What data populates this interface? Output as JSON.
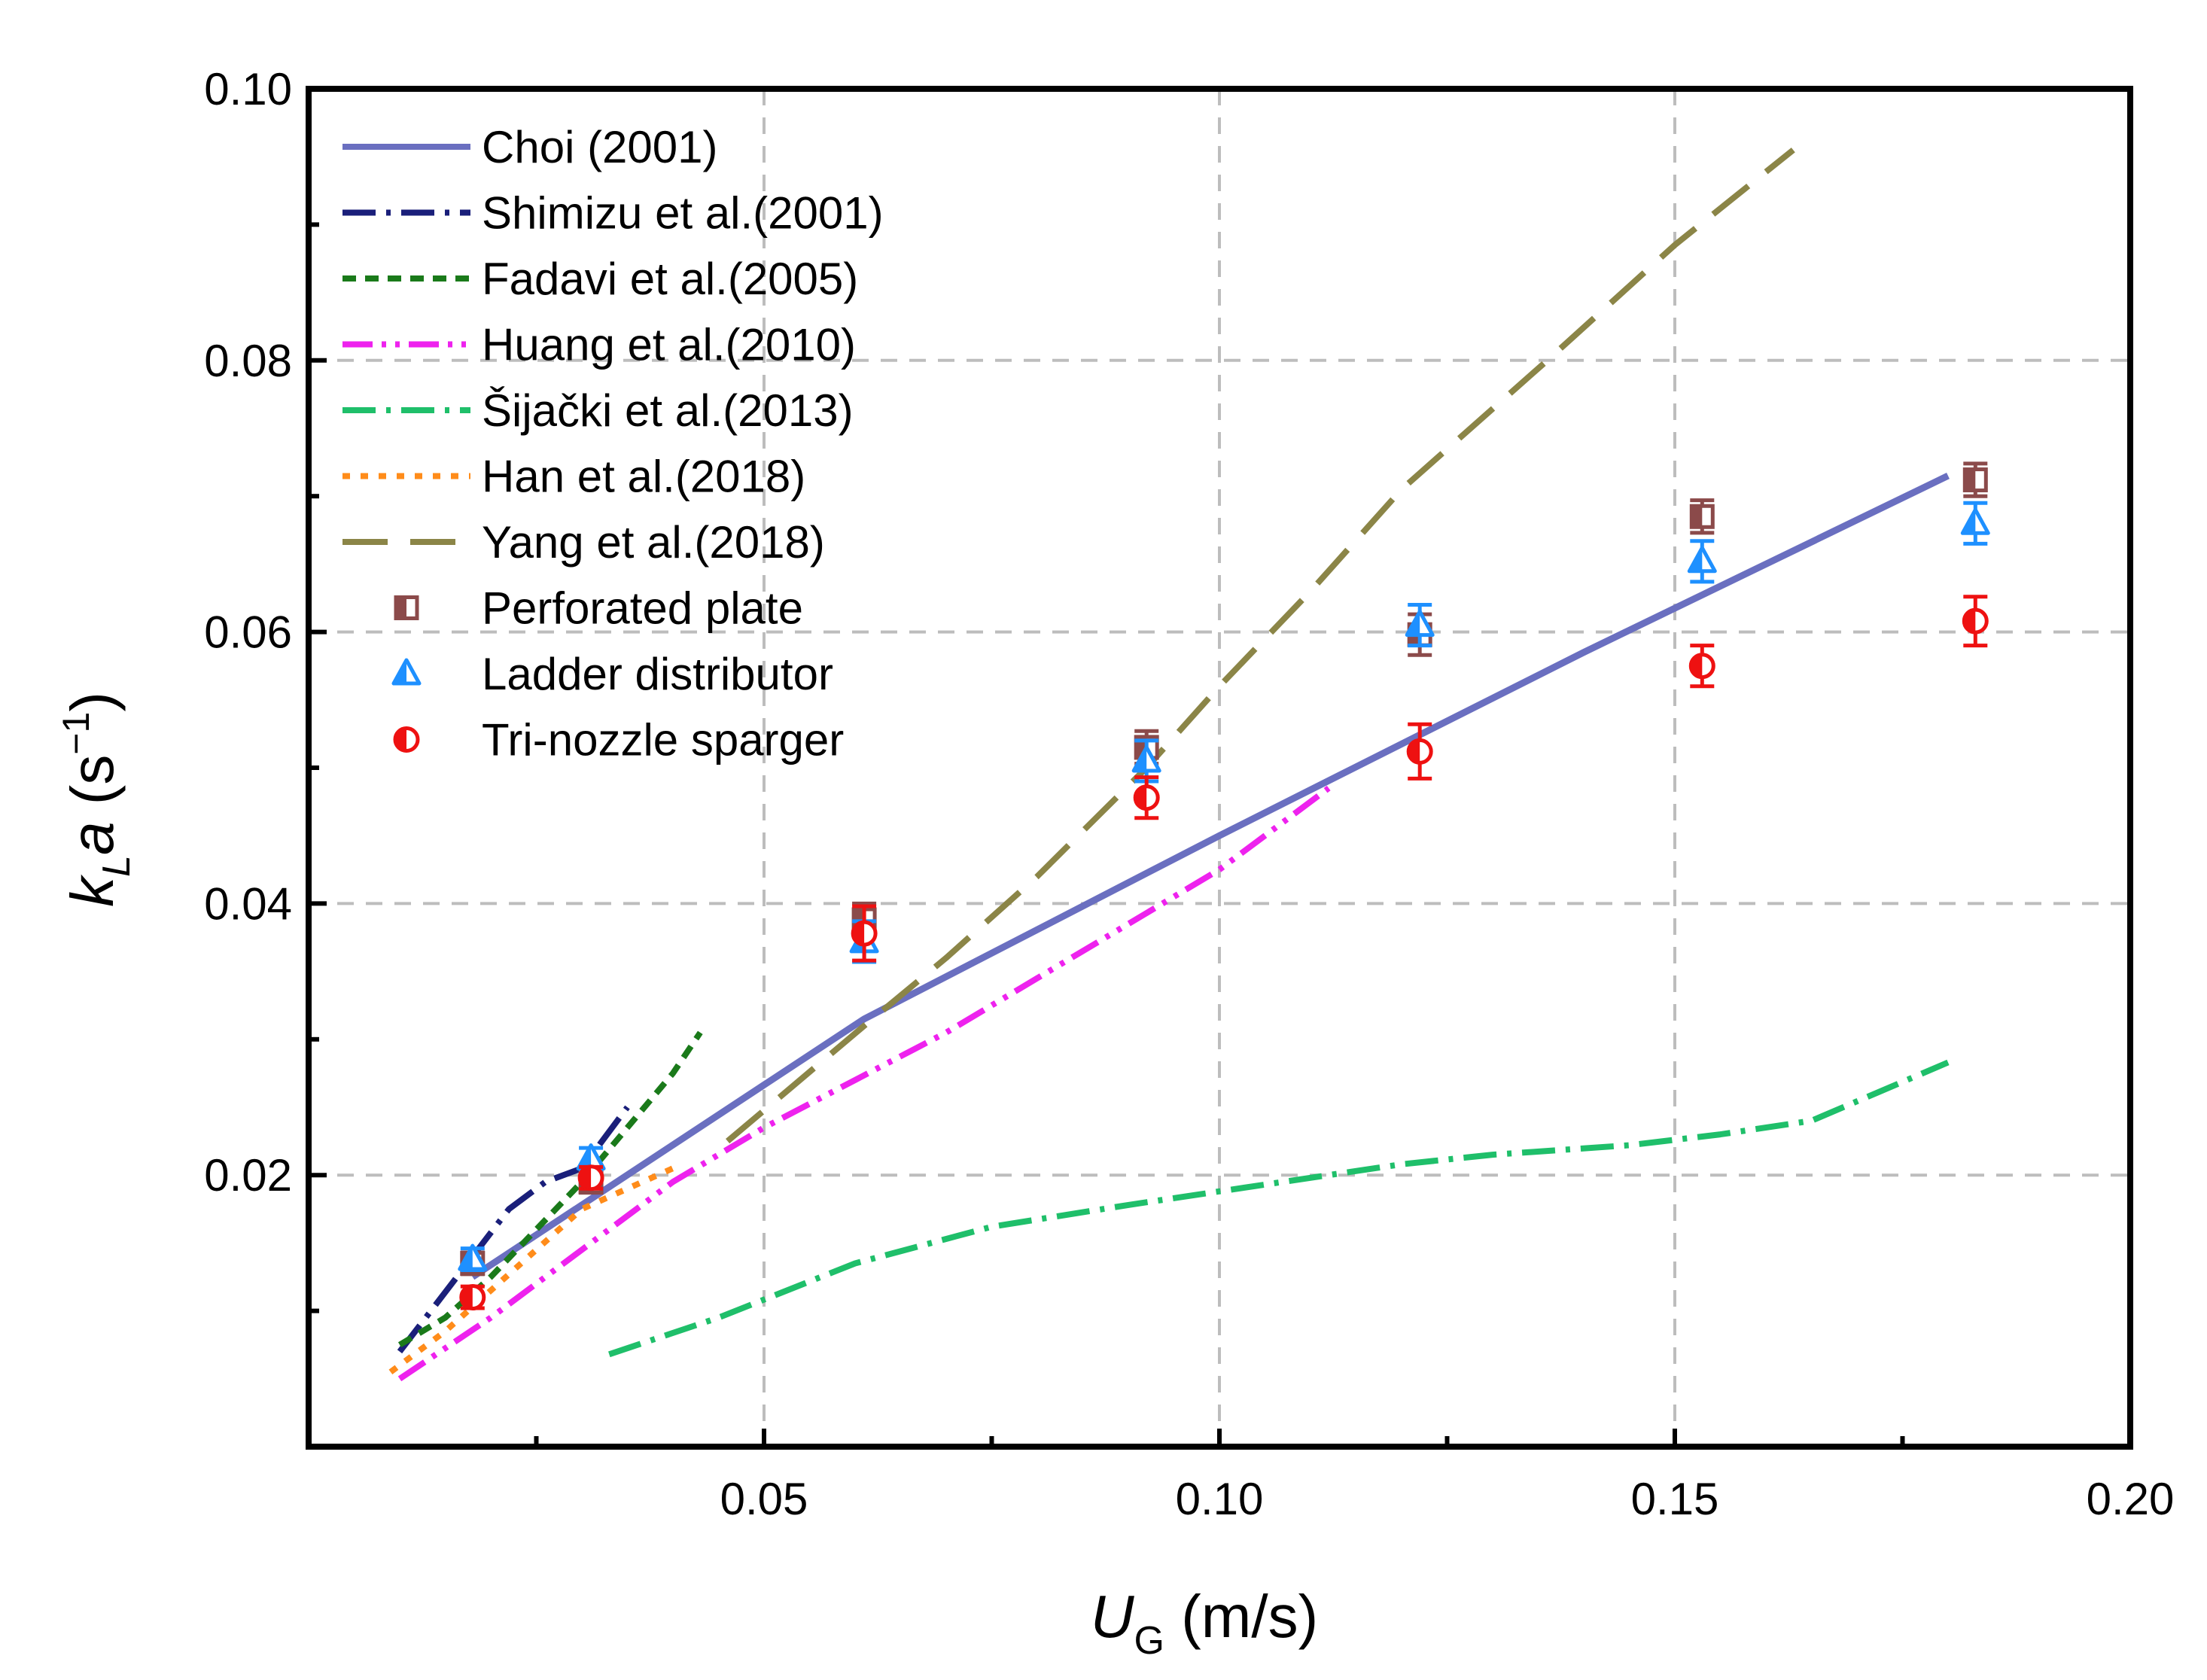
{
  "chart_data": {
    "type": "line",
    "title": "",
    "xlabel": {
      "main": "U",
      "sub": "G",
      "unit": " (m/s)"
    },
    "ylabel": {
      "main_k": "k",
      "sub": "L",
      "main_a": "a",
      "unit_open": " (s",
      "sup": "−1",
      "unit_close": ")"
    },
    "xlim": [
      0.0,
      0.2
    ],
    "ylim": [
      0.0,
      0.1
    ],
    "xticks": [
      0.05,
      0.1,
      0.15,
      0.2
    ],
    "xtick_labels": [
      "0.05",
      "0.10",
      "0.15",
      "0.20"
    ],
    "xminor": [
      0.025,
      0.075,
      0.125,
      0.175
    ],
    "yticks": [
      0.02,
      0.04,
      0.06,
      0.08,
      0.1
    ],
    "ytick_labels": [
      "0.02",
      "0.04",
      "0.06",
      "0.08",
      "0.10"
    ],
    "yminor": [
      0.01,
      0.03,
      0.05,
      0.07,
      0.09
    ],
    "grid": true,
    "legend_position": "top-left",
    "line_series": [
      {
        "name": "Choi (2001)",
        "color": "#6a6fc0",
        "dash": "solid",
        "x": [
          0.018,
          0.061,
          0.1,
          0.14,
          0.18
        ],
        "y": [
          0.0125,
          0.0315,
          0.045,
          0.0585,
          0.0715
        ]
      },
      {
        "name": "Shimizu et al.(2001)",
        "color": "#1a1f7a",
        "dash": "dashdot",
        "x": [
          0.01,
          0.014,
          0.018,
          0.022,
          0.026,
          0.03,
          0.035
        ],
        "y": [
          0.007,
          0.0105,
          0.014,
          0.0175,
          0.0195,
          0.0205,
          0.025
        ]
      },
      {
        "name": "Fadavi et al.(2005)",
        "color": "#1a7a1a",
        "dash": "short",
        "x": [
          0.01,
          0.015,
          0.02,
          0.025,
          0.03,
          0.035,
          0.04,
          0.043
        ],
        "y": [
          0.0075,
          0.0095,
          0.0125,
          0.016,
          0.0195,
          0.0235,
          0.0275,
          0.0305
        ]
      },
      {
        "name": "Huang et al.(2010)",
        "color": "#ee22ee",
        "dash": "dashdotdot",
        "x": [
          0.01,
          0.02,
          0.03,
          0.04,
          0.05,
          0.06,
          0.07,
          0.08,
          0.09,
          0.1,
          0.112
        ],
        "y": [
          0.005,
          0.0095,
          0.0145,
          0.0195,
          0.0235,
          0.027,
          0.0305,
          0.0345,
          0.0385,
          0.0425,
          0.0485
        ]
      },
      {
        "name": "Šijački et al.(2013)",
        "color": "#1fbf6a",
        "dash": "dashdot",
        "x": [
          0.033,
          0.045,
          0.06,
          0.075,
          0.09,
          0.1,
          0.11,
          0.12,
          0.13,
          0.145,
          0.155,
          0.165,
          0.18
        ],
        "y": [
          0.0068,
          0.0095,
          0.0135,
          0.0162,
          0.0178,
          0.0188,
          0.0198,
          0.0208,
          0.0215,
          0.0222,
          0.023,
          0.024,
          0.0283
        ]
      },
      {
        "name": "Han et al.(2018)",
        "color": "#ff8c1a",
        "dash": "dotted",
        "x": [
          0.009,
          0.015,
          0.02,
          0.025,
          0.03,
          0.035,
          0.04
        ],
        "y": [
          0.0055,
          0.0085,
          0.0115,
          0.0145,
          0.0175,
          0.019,
          0.0205
        ]
      },
      {
        "name": "Yang et al.(2018)",
        "color": "#8b8547",
        "dash": "long",
        "x": [
          0.046,
          0.061,
          0.07,
          0.08,
          0.092,
          0.1,
          0.11,
          0.12,
          0.136,
          0.15,
          0.163
        ],
        "y": [
          0.0225,
          0.031,
          0.036,
          0.042,
          0.05,
          0.056,
          0.063,
          0.0705,
          0.08,
          0.0885,
          0.0955
        ]
      }
    ],
    "scatter_series": [
      {
        "name": "Perforated plate",
        "color": "#8b4a4a",
        "marker": "square-half",
        "x": [
          0.018,
          0.031,
          0.061,
          0.092,
          0.122,
          0.153,
          0.183
        ],
        "y": [
          0.0135,
          0.0195,
          0.0388,
          0.0515,
          0.0598,
          0.0685,
          0.0712
        ],
        "err": [
          0.0008,
          0.0008,
          0.0012,
          0.0012,
          0.0015,
          0.0012,
          0.0012
        ]
      },
      {
        "name": "Ladder distributor",
        "color": "#1e90ff",
        "marker": "triangle-half",
        "x": [
          0.018,
          0.031,
          0.061,
          0.092,
          0.122,
          0.153,
          0.183
        ],
        "y": [
          0.0138,
          0.0212,
          0.0372,
          0.0505,
          0.0605,
          0.0652,
          0.068
        ],
        "err": [
          0.0008,
          0.0008,
          0.0015,
          0.0015,
          0.0015,
          0.0015,
          0.0015
        ]
      },
      {
        "name": "Tri-nozzle sparger",
        "color": "#ee1111",
        "marker": "circle-half",
        "x": [
          0.018,
          0.031,
          0.061,
          0.092,
          0.122,
          0.153,
          0.183
        ],
        "y": [
          0.011,
          0.0198,
          0.0378,
          0.0478,
          0.0512,
          0.0575,
          0.0608
        ],
        "err": [
          0.0008,
          0.0008,
          0.002,
          0.0015,
          0.002,
          0.0015,
          0.0018
        ]
      }
    ]
  }
}
